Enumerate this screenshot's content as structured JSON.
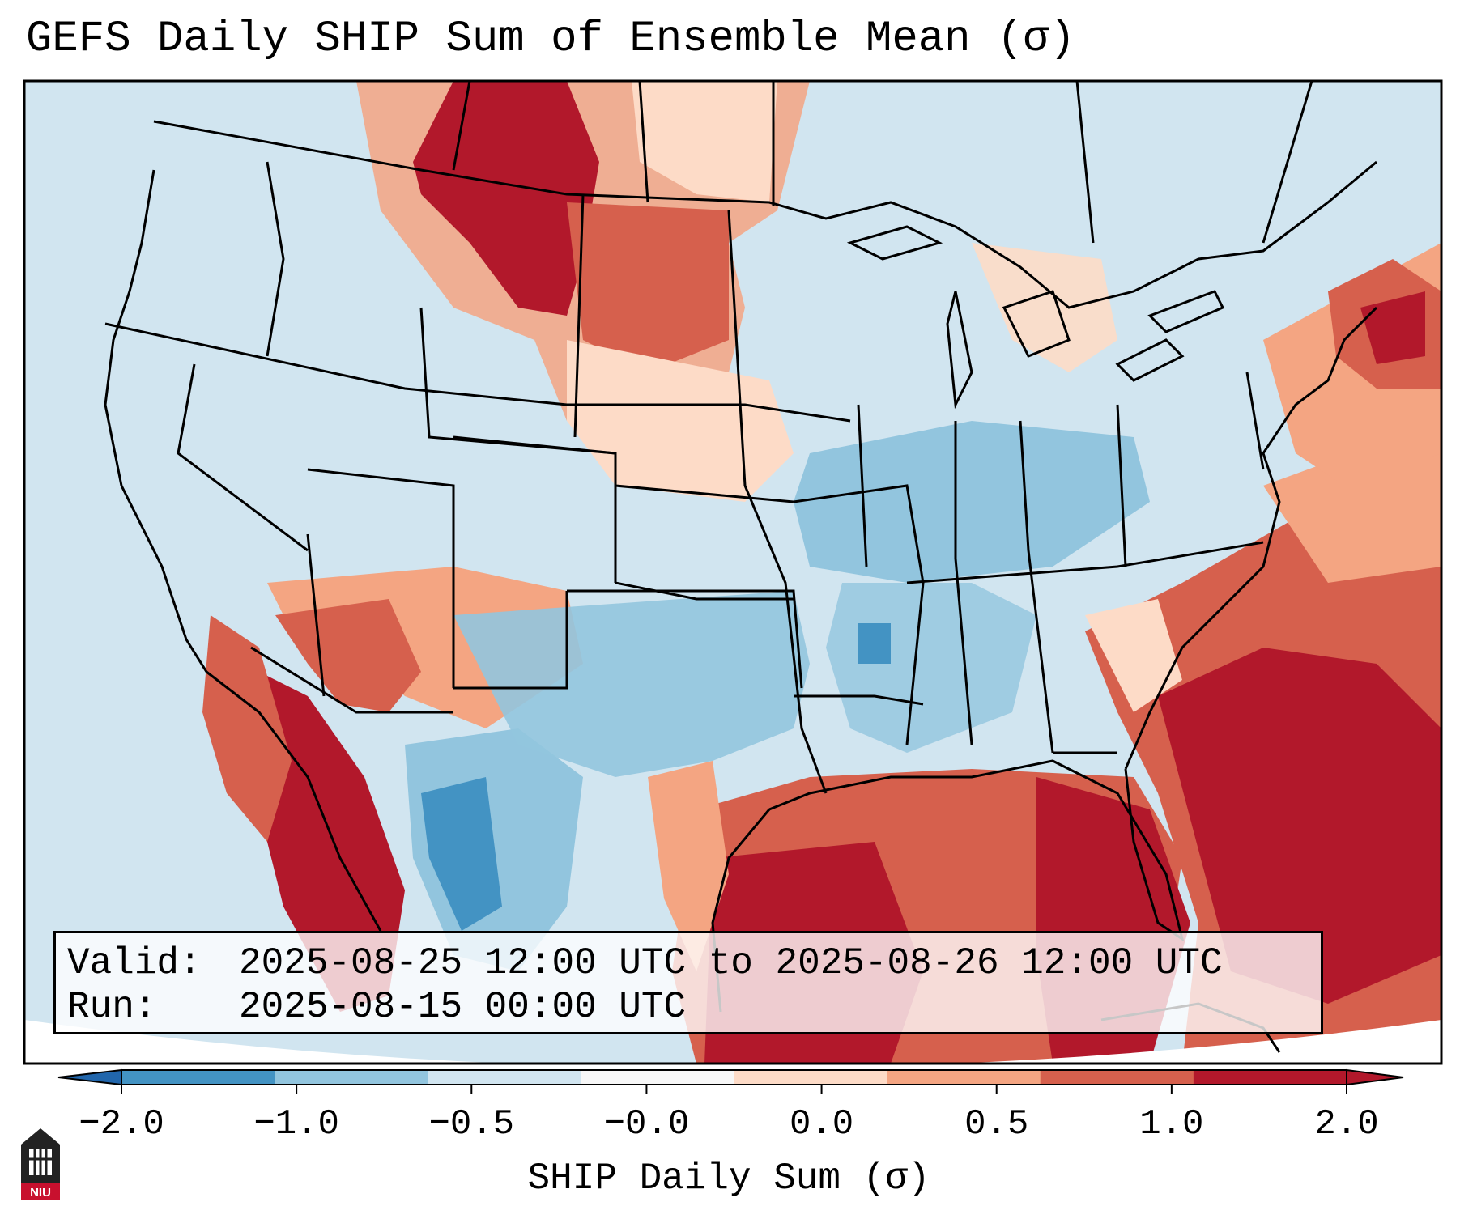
{
  "title": "GEFS Daily SHIP Sum of Ensemble Mean (σ)",
  "valid_label": "Valid:",
  "valid_value": "2025-08-25 12:00 UTC to 2025-08-26 12:00 UTC",
  "run_label": "Run:",
  "run_value": "2025-08-15 00:00 UTC",
  "colorbar": {
    "label": "SHIP Daily Sum (σ)",
    "ticks": [
      "−2.0",
      "−1.0",
      "−0.5",
      "−0.0",
      "0.0",
      "0.5",
      "1.0",
      "2.0"
    ],
    "colors": [
      "#4393c3",
      "#92c5de",
      "#d1e5f0",
      "#f7f7f7",
      "#fddbc7",
      "#f4a582",
      "#d6604d",
      "#b2182b"
    ],
    "under_color": "#2166ac",
    "over_color": "#b2182b"
  },
  "logo": {
    "text": "NIU",
    "icon": "niu-logo-icon"
  }
}
